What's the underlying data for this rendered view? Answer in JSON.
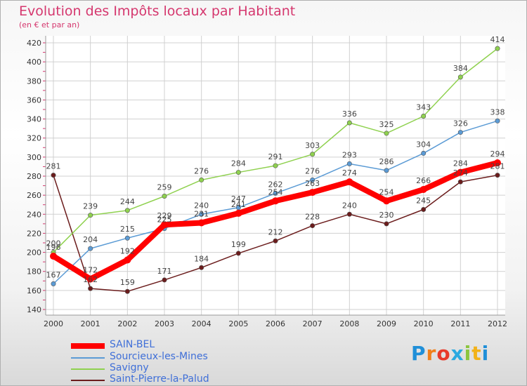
{
  "chart_data": {
    "type": "line",
    "title": "Evolution des Impôts locaux par Habitant",
    "subtitle": "(en € et par an)",
    "xlabel": "",
    "ylabel": "",
    "ylim": [
      140,
      420
    ],
    "yticks": [
      "140",
      "160",
      "180",
      "200",
      "220",
      "240",
      "260",
      "280",
      "300",
      "320",
      "340",
      "360",
      "380",
      "400",
      "420"
    ],
    "categories": [
      "2000",
      "2001",
      "2002",
      "2003",
      "2004",
      "2005",
      "2006",
      "2007",
      "2008",
      "2009",
      "2010",
      "2011",
      "2012"
    ],
    "series": [
      {
        "name": "SAIN-BEL",
        "color": "#ff0000",
        "values": [
          196,
          172,
          192,
          229,
          231,
          241,
          254,
          263,
          274,
          254,
          266,
          284,
          294
        ],
        "labels": [
          "196",
          "172",
          "192",
          "229",
          "231",
          "241",
          "254",
          "263",
          "274",
          "254",
          "266",
          "284",
          "294"
        ]
      },
      {
        "name": "Sourcieux-les-Mines",
        "color": "#5b9bd5",
        "values": [
          167,
          204,
          215,
          225,
          240,
          247,
          262,
          276,
          293,
          286,
          304,
          326,
          338
        ],
        "labels": [
          "167",
          "204",
          "215",
          "225",
          "240",
          "247",
          "262",
          "276",
          "293",
          "286",
          "304",
          "326",
          "338"
        ]
      },
      {
        "name": "Savigny",
        "color": "#8fd14f",
        "values": [
          200,
          239,
          244,
          259,
          276,
          284,
          291,
          303,
          336,
          325,
          343,
          384,
          414
        ],
        "labels": [
          "200",
          "239",
          "244",
          "259",
          "276",
          "284",
          "291",
          "303",
          "336",
          "325",
          "343",
          "384",
          "414"
        ]
      },
      {
        "name": "Saint-Pierre-la-Palud",
        "color": "#6b1c1c",
        "values": [
          281,
          162,
          159,
          171,
          184,
          199,
          212,
          228,
          240,
          230,
          245,
          274,
          281
        ],
        "labels": [
          "281",
          "162",
          "159",
          "171",
          "184",
          "199",
          "212",
          "228",
          "240",
          "230",
          "245",
          "274",
          "281"
        ]
      }
    ],
    "legend_position": "bottom-left",
    "grid": true
  },
  "logo": {
    "text": "Proxiti",
    "colors": [
      "#1f8fd8",
      "#f07f1a",
      "#e83a2a",
      "#2aa9e0",
      "#8bc53f",
      "#f2b21a",
      "#1f8fd8"
    ]
  }
}
